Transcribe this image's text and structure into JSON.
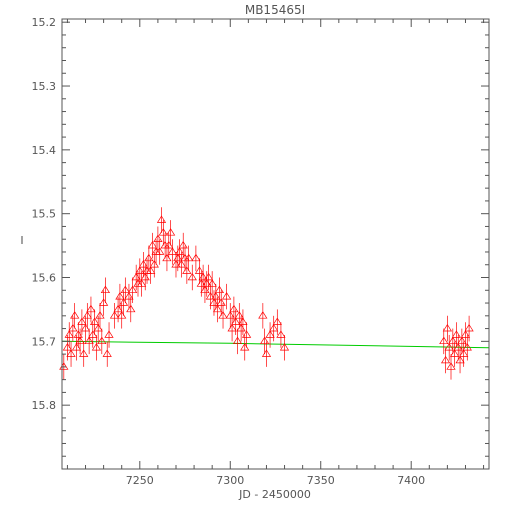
{
  "chart_data": {
    "type": "scatter",
    "title": "MB15465I",
    "xlabel": "JD - 2450000",
    "ylabel": "I",
    "xlim": [
      7207,
      7443
    ],
    "ylim": [
      15.9,
      15.195
    ],
    "y_inverted": true,
    "grid": false,
    "xticks": [
      7250,
      7300,
      7350,
      7400
    ],
    "xtick_labels": [
      "7250",
      "7300",
      "7350",
      "7400"
    ],
    "yticks": [
      15.2,
      15.3,
      15.4,
      15.5,
      15.6,
      15.7,
      15.8
    ],
    "ytick_labels": [
      "15.2",
      "15.3",
      "15.4",
      "15.5",
      "15.6",
      "15.7",
      "15.8"
    ],
    "colors": {
      "data": "#ff0000",
      "model": "#00cc00",
      "axes": "#555555"
    },
    "series": [
      {
        "marker": "triangle-open",
        "points": [
          [
            7208,
            15.74,
            0.02
          ],
          [
            7210,
            15.71,
            0.02
          ],
          [
            7211,
            15.69,
            0.02
          ],
          [
            7212,
            15.72,
            0.02
          ],
          [
            7213,
            15.68,
            0.02
          ],
          [
            7214,
            15.66,
            0.02
          ],
          [
            7215,
            15.71,
            0.02
          ],
          [
            7216,
            15.69,
            0.02
          ],
          [
            7217,
            15.7,
            0.02
          ],
          [
            7218,
            15.67,
            0.02
          ],
          [
            7219,
            15.72,
            0.02
          ],
          [
            7220,
            15.68,
            0.02
          ],
          [
            7221,
            15.66,
            0.02
          ],
          [
            7222,
            15.7,
            0.02
          ],
          [
            7223,
            15.65,
            0.02
          ],
          [
            7224,
            15.69,
            0.02
          ],
          [
            7225,
            15.67,
            0.02
          ],
          [
            7226,
            15.71,
            0.02
          ],
          [
            7227,
            15.68,
            0.02
          ],
          [
            7228,
            15.66,
            0.02
          ],
          [
            7229,
            15.7,
            0.02
          ],
          [
            7230,
            15.64,
            0.02
          ],
          [
            7231,
            15.62,
            0.02
          ],
          [
            7232,
            15.72,
            0.02
          ],
          [
            7233,
            15.69,
            0.02
          ],
          [
            7236,
            15.66,
            0.02
          ],
          [
            7238,
            15.65,
            0.02
          ],
          [
            7239,
            15.63,
            0.02
          ],
          [
            7240,
            15.66,
            0.02
          ],
          [
            7241,
            15.64,
            0.02
          ],
          [
            7242,
            15.62,
            0.02
          ],
          [
            7244,
            15.63,
            0.02
          ],
          [
            7245,
            15.65,
            0.02
          ],
          [
            7246,
            15.62,
            0.02
          ],
          [
            7248,
            15.6,
            0.02
          ],
          [
            7249,
            15.61,
            0.02
          ],
          [
            7250,
            15.59,
            0.02
          ],
          [
            7251,
            15.61,
            0.02
          ],
          [
            7252,
            15.58,
            0.02
          ],
          [
            7253,
            15.6,
            0.02
          ],
          [
            7254,
            15.59,
            0.02
          ],
          [
            7255,
            15.57,
            0.02
          ],
          [
            7256,
            15.59,
            0.02
          ],
          [
            7257,
            15.55,
            0.02
          ],
          [
            7258,
            15.58,
            0.02
          ],
          [
            7259,
            15.56,
            0.02
          ],
          [
            7260,
            15.54,
            0.02
          ],
          [
            7261,
            15.56,
            0.02
          ],
          [
            7262,
            15.51,
            0.02
          ],
          [
            7263,
            15.53,
            0.02
          ],
          [
            7264,
            15.55,
            0.02
          ],
          [
            7265,
            15.57,
            0.02
          ],
          [
            7266,
            15.55,
            0.02
          ],
          [
            7267,
            15.53,
            0.02
          ],
          [
            7268,
            15.56,
            0.02
          ],
          [
            7270,
            15.58,
            0.02
          ],
          [
            7271,
            15.57,
            0.02
          ],
          [
            7272,
            15.56,
            0.02
          ],
          [
            7273,
            15.58,
            0.02
          ],
          [
            7274,
            15.55,
            0.02
          ],
          [
            7275,
            15.57,
            0.02
          ],
          [
            7276,
            15.59,
            0.02
          ],
          [
            7277,
            15.57,
            0.02
          ],
          [
            7279,
            15.6,
            0.02
          ],
          [
            7281,
            15.57,
            0.02
          ],
          [
            7283,
            15.59,
            0.02
          ],
          [
            7284,
            15.61,
            0.02
          ],
          [
            7285,
            15.6,
            0.02
          ],
          [
            7286,
            15.62,
            0.02
          ],
          [
            7287,
            15.61,
            0.02
          ],
          [
            7288,
            15.6,
            0.02
          ],
          [
            7289,
            15.63,
            0.02
          ],
          [
            7290,
            15.61,
            0.02
          ],
          [
            7291,
            15.64,
            0.02
          ],
          [
            7292,
            15.63,
            0.02
          ],
          [
            7293,
            15.65,
            0.02
          ],
          [
            7294,
            15.62,
            0.02
          ],
          [
            7295,
            15.64,
            0.02
          ],
          [
            7296,
            15.66,
            0.02
          ],
          [
            7298,
            15.63,
            0.02
          ],
          [
            7300,
            15.66,
            0.02
          ],
          [
            7301,
            15.68,
            0.02
          ],
          [
            7302,
            15.65,
            0.02
          ],
          [
            7303,
            15.67,
            0.02
          ],
          [
            7304,
            15.7,
            0.02
          ],
          [
            7305,
            15.66,
            0.02
          ],
          [
            7306,
            15.68,
            0.02
          ],
          [
            7307,
            15.67,
            0.02
          ],
          [
            7308,
            15.71,
            0.02
          ],
          [
            7309,
            15.69,
            0.02
          ],
          [
            7318,
            15.66,
            0.02
          ],
          [
            7319,
            15.7,
            0.02
          ],
          [
            7320,
            15.72,
            0.02
          ],
          [
            7322,
            15.69,
            0.02
          ],
          [
            7324,
            15.68,
            0.02
          ],
          [
            7326,
            15.67,
            0.02
          ],
          [
            7328,
            15.69,
            0.02
          ],
          [
            7330,
            15.71,
            0.02
          ],
          [
            7418,
            15.7,
            0.02
          ],
          [
            7419,
            15.73,
            0.02
          ],
          [
            7420,
            15.68,
            0.02
          ],
          [
            7421,
            15.71,
            0.02
          ],
          [
            7422,
            15.74,
            0.02
          ],
          [
            7423,
            15.7,
            0.02
          ],
          [
            7424,
            15.72,
            0.02
          ],
          [
            7425,
            15.69,
            0.02
          ],
          [
            7426,
            15.71,
            0.02
          ],
          [
            7427,
            15.73,
            0.02
          ],
          [
            7428,
            15.7,
            0.02
          ],
          [
            7429,
            15.72,
            0.02
          ],
          [
            7430,
            15.69,
            0.02
          ],
          [
            7431,
            15.71,
            0.02
          ],
          [
            7432,
            15.68,
            0.02
          ]
        ]
      }
    ],
    "model_line": {
      "x": [
        7207,
        7300,
        7443
      ],
      "y": [
        15.7,
        15.703,
        15.71
      ]
    }
  }
}
